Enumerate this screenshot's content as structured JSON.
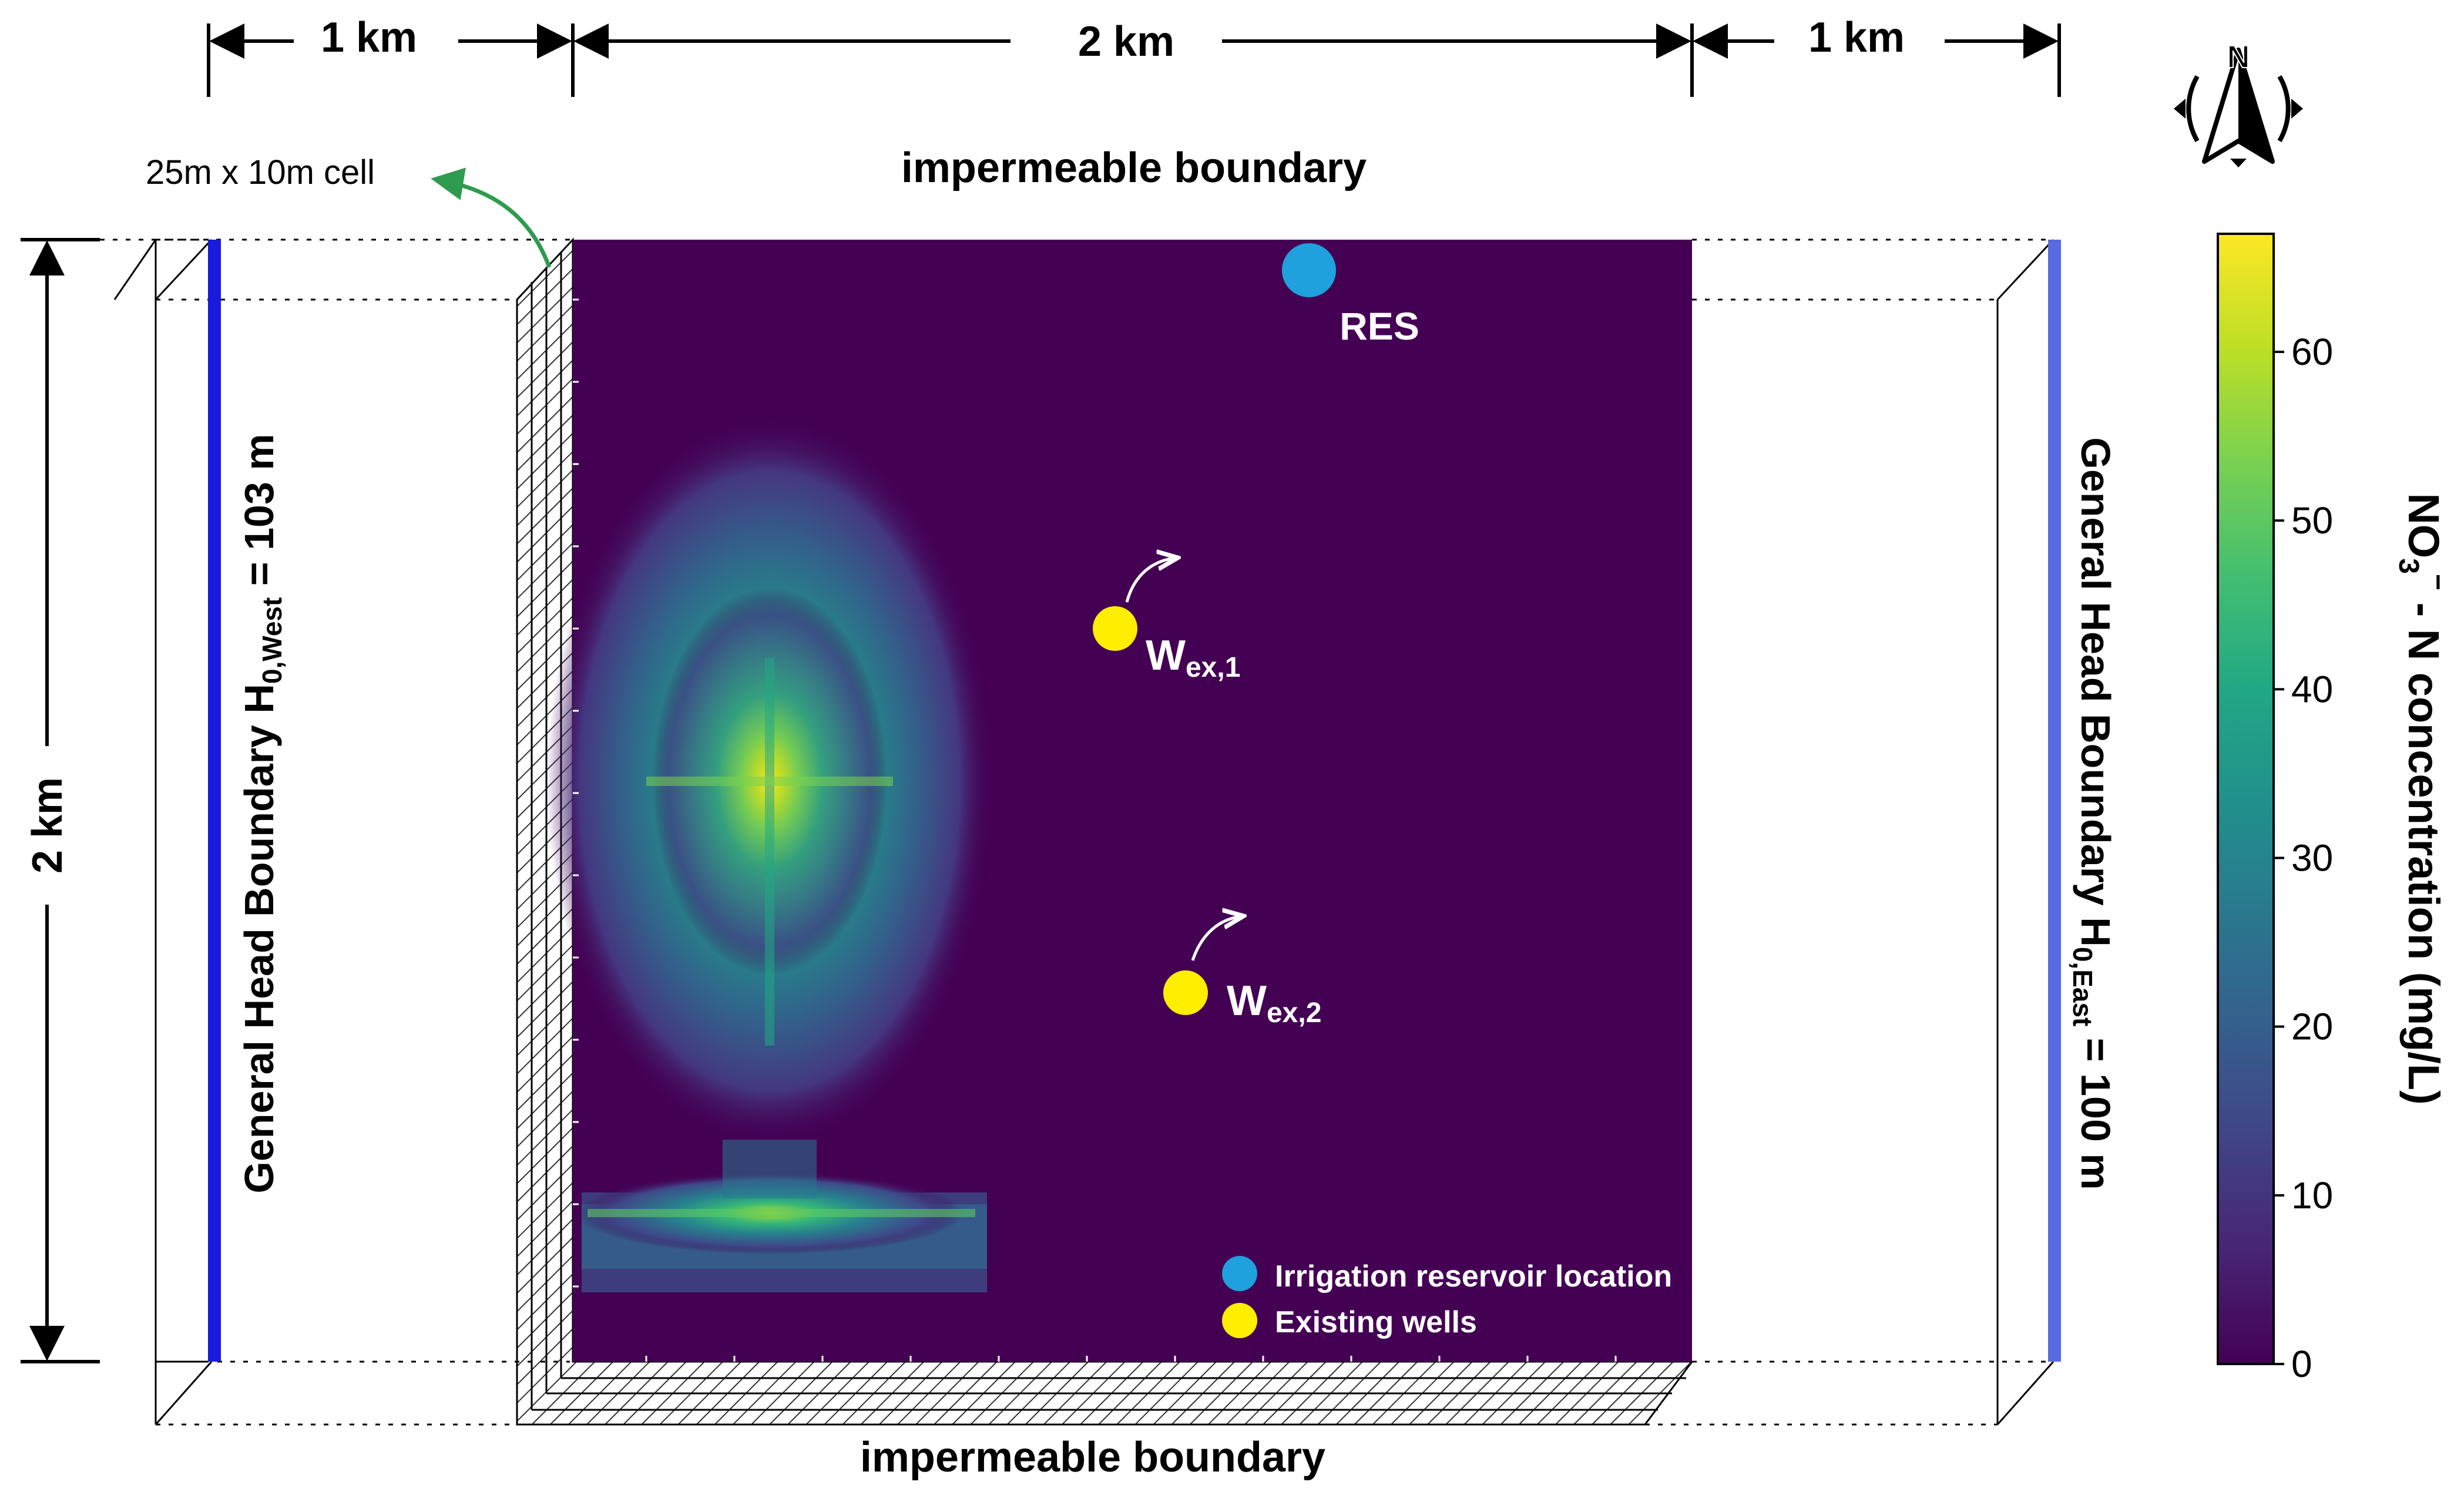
{
  "dimensions": {
    "west_width": "1 km",
    "middle_width": "2 km",
    "east_width": "1 km",
    "height": "2 km"
  },
  "cell_label": "25m x 10m cell",
  "boundaries": {
    "top": "impermeable boundary",
    "bottom": "impermeable boundary",
    "west_prefix": "General Head Boundary H",
    "west_sub": "0,West",
    "west_value": " = 103 m",
    "east_prefix": "General Head Boundary H",
    "east_sub": "0,East",
    "east_value": " = 100 m"
  },
  "compass": {
    "label": "N"
  },
  "markers": {
    "reservoir": {
      "label": "RES",
      "color": "#1ea1dc"
    },
    "well1": {
      "label": "W",
      "sub": "ex,1",
      "color": "#ffee00"
    },
    "well2": {
      "label": "W",
      "sub": "ex,2",
      "color": "#ffee00"
    }
  },
  "legend": {
    "reservoir": "Irrigation reservoir location",
    "wells": "Existing wells"
  },
  "colorbar": {
    "title_main": "NO",
    "title_sub": "3",
    "title_sup": "−",
    "title_rest": " - N concentration (mg/L)",
    "min": 0,
    "max": 67,
    "ticks": [
      "0",
      "10",
      "20",
      "30",
      "40",
      "50",
      "60"
    ],
    "tick_values": [
      0,
      10,
      20,
      30,
      40,
      50,
      60
    ]
  },
  "colors": {
    "background": "#440154",
    "west_line": "#1a1adc",
    "east_line": "#5a6ae0",
    "arrow_green": "#2e9b4e"
  }
}
